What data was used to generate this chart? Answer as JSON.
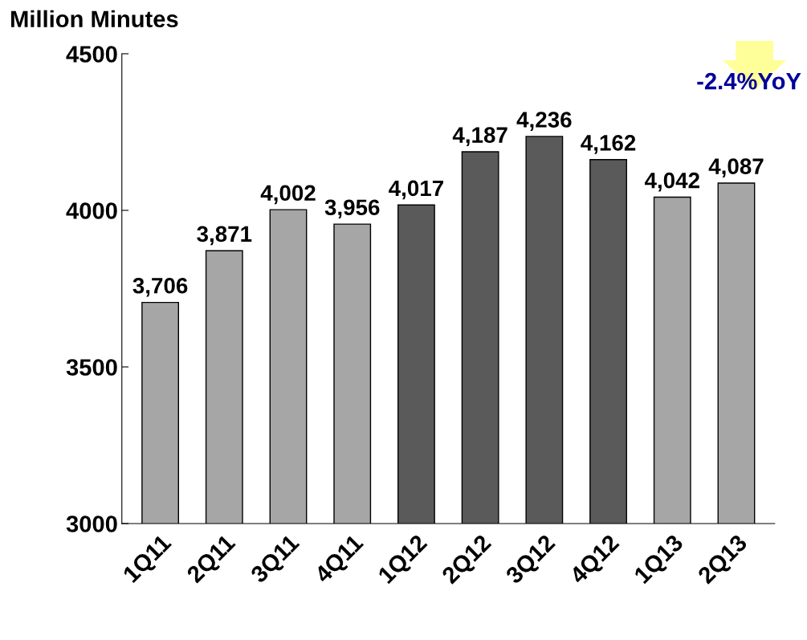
{
  "chart_data": {
    "type": "bar",
    "ylabel": "Million Minutes",
    "categories": [
      "1Q11",
      "2Q11",
      "3Q11",
      "4Q11",
      "1Q12",
      "2Q12",
      "3Q12",
      "4Q12",
      "1Q13",
      "2Q13"
    ],
    "values": [
      3706,
      3871,
      4002,
      3956,
      4017,
      4187,
      4236,
      4162,
      4042,
      4087
    ],
    "colors": [
      "#a6a6a6",
      "#a6a6a6",
      "#a6a6a6",
      "#a6a6a6",
      "#5a5a5a",
      "#5a5a5a",
      "#5a5a5a",
      "#5a5a5a",
      "#a6a6a6",
      "#a6a6a6"
    ],
    "value_labels": [
      "3,706",
      "3,871",
      "4,002",
      "3,956",
      "4,017",
      "4,187",
      "4,236",
      "4,162",
      "4,042",
      "4,087"
    ],
    "ylim": [
      3000,
      4500
    ],
    "yticks": [
      3000,
      3500,
      4000,
      4500
    ],
    "grid": false,
    "legend": false,
    "annotations": [
      "-2.4%YoY"
    ]
  }
}
